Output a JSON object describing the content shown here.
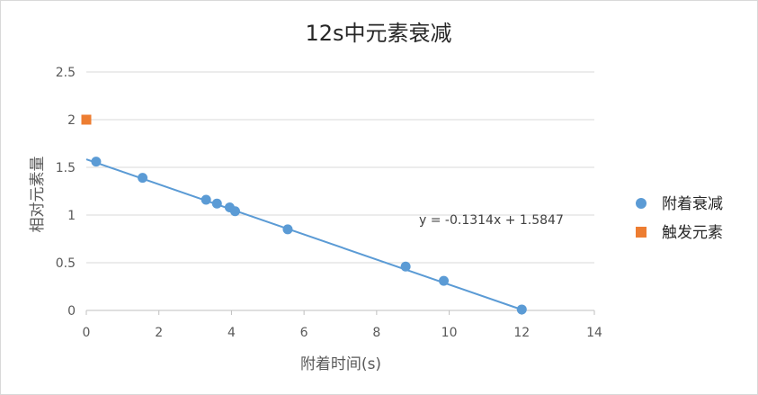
{
  "chart_data": {
    "type": "scatter",
    "title": "12s中元素衰减",
    "xlabel": "附着时间(s)",
    "ylabel": "相对元素量",
    "xlim": [
      0,
      14
    ],
    "ylim": [
      0,
      2.5
    ],
    "xticks": [
      0,
      2,
      4,
      6,
      8,
      10,
      12,
      14
    ],
    "yticks": [
      0,
      0.5,
      1,
      1.5,
      2,
      2.5
    ],
    "ytick_labels": [
      "0",
      "0.5",
      "1",
      "1.5",
      "2",
      "2.5"
    ],
    "grid": "horizontal",
    "legend_position": "right",
    "series": [
      {
        "name": "附着衰减",
        "marker": "circle",
        "color": "#5b9bd5",
        "points": [
          {
            "x": 0.27,
            "y": 1.56
          },
          {
            "x": 1.55,
            "y": 1.39
          },
          {
            "x": 3.3,
            "y": 1.16
          },
          {
            "x": 3.6,
            "y": 1.12
          },
          {
            "x": 3.95,
            "y": 1.08
          },
          {
            "x": 4.1,
            "y": 1.04
          },
          {
            "x": 5.55,
            "y": 0.85
          },
          {
            "x": 8.8,
            "y": 0.46
          },
          {
            "x": 9.85,
            "y": 0.31
          },
          {
            "x": 12.0,
            "y": 0.01
          }
        ]
      },
      {
        "name": "触发元素",
        "marker": "square",
        "color": "#ed7d31",
        "points": [
          {
            "x": 0,
            "y": 2
          }
        ]
      }
    ],
    "trendline": {
      "series": "附着衰减",
      "slope": -0.1314,
      "intercept": 1.5847,
      "x_range": [
        0,
        12.06
      ],
      "equation_label": "y = -0.1314x + 1.5847",
      "color": "#5b9bd5"
    }
  }
}
